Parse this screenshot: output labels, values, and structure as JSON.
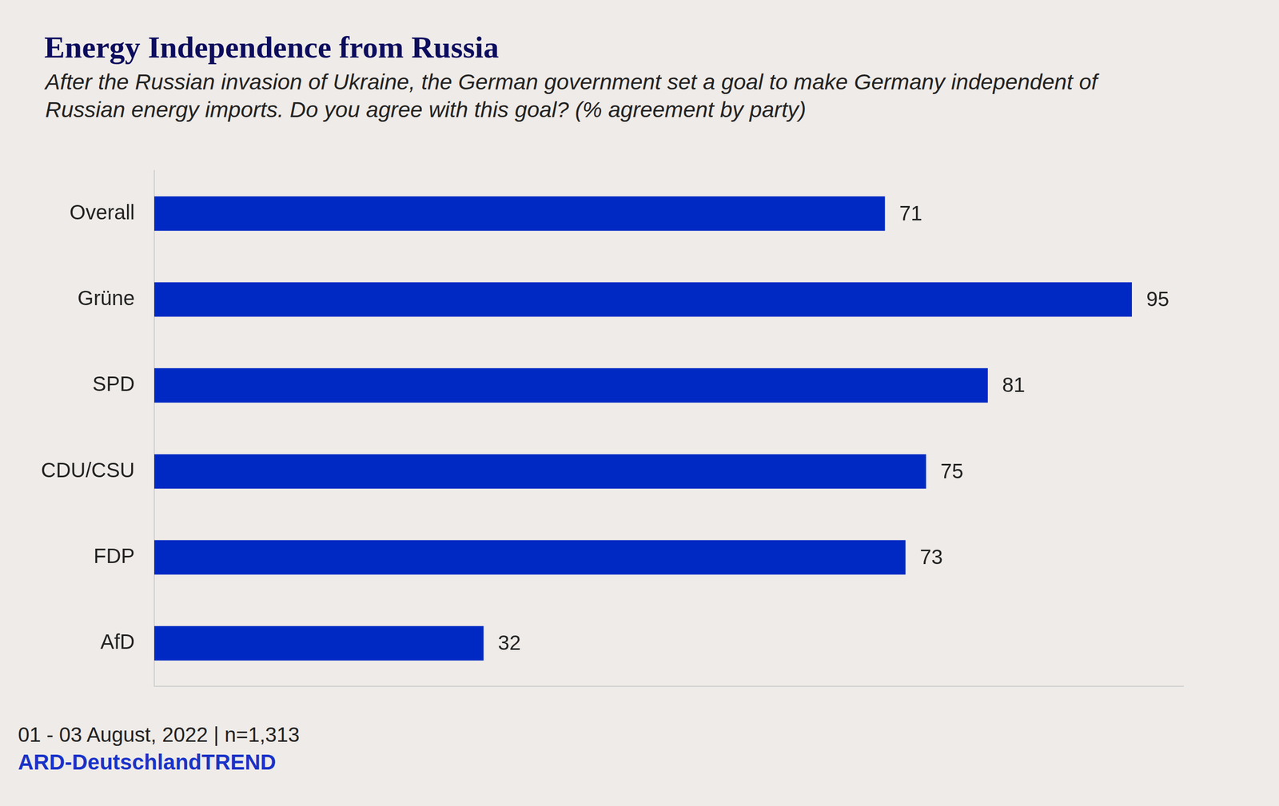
{
  "chart_data": {
    "type": "bar",
    "orientation": "horizontal",
    "title": "Energy Independence from Russia",
    "subtitle": "After the Russian invasion of Ukraine, the German government set a goal to make Germany independent of Russian energy imports. Do you agree with this goal? (% agreement by party)",
    "categories": [
      "Overall",
      "Grüne",
      "SPD",
      "CDU/CSU",
      "FDP",
      "AfD"
    ],
    "values": [
      71,
      95,
      81,
      75,
      73,
      32
    ],
    "color": "#0029c4",
    "xlim": [
      0,
      100
    ],
    "grid": false,
    "data_labels": true,
    "tick_labels": "y",
    "note": "01 - 03 August, 2022 | n=1,313",
    "source": "ARD-DeutschlandTREND"
  }
}
